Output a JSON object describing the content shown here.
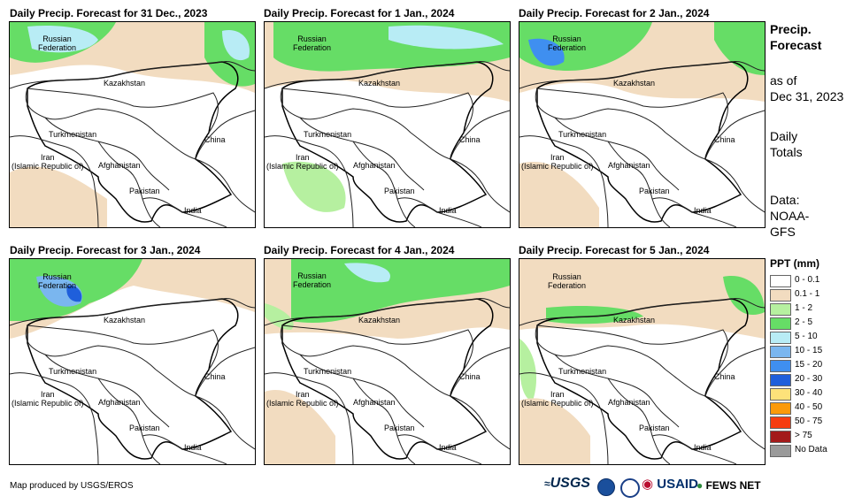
{
  "panels": [
    {
      "title": "Daily Precip. Forecast for 31 Dec., 2023"
    },
    {
      "title": "Daily Precip. Forecast for 1 Jan., 2024"
    },
    {
      "title": "Daily Precip. Forecast for 2 Jan., 2024"
    },
    {
      "title": "Daily Precip. Forecast for 3 Jan., 2024"
    },
    {
      "title": "Daily Precip. Forecast for 4 Jan., 2024"
    },
    {
      "title": "Daily Precip. Forecast for 5 Jan., 2024"
    }
  ],
  "labels": {
    "russia_1": "Russian",
    "russia_2": "Federation",
    "kazakhstan": "Kazakhstan",
    "turkmenistan": "Turkmenistan",
    "iran_1": "Iran",
    "iran_2": "(Islamic Republic of)",
    "afghanistan": "Afghanistan",
    "pakistan": "Pakistan",
    "china": "China",
    "india": "India"
  },
  "side": {
    "title_1": "Precip.",
    "title_2": "Forecast",
    "asof_1": "as of",
    "asof_2": "Dec 31, 2023",
    "totals_1": "Daily",
    "totals_2": "Totals",
    "data_1": "Data:",
    "data_2": "NOAA-",
    "data_3": "GFS"
  },
  "legend": {
    "title": "PPT (mm)",
    "items": [
      {
        "label": "0 - 0.1",
        "color": "#ffffff"
      },
      {
        "label": "0.1 - 1",
        "color": "#f2dcc0"
      },
      {
        "label": "1 - 2",
        "color": "#b6f0a0"
      },
      {
        "label": "2 - 5",
        "color": "#66dd66"
      },
      {
        "label": "5 - 10",
        "color": "#b8ecf5"
      },
      {
        "label": "10 - 15",
        "color": "#7ab6ef"
      },
      {
        "label": "15 - 20",
        "color": "#3f8ff0"
      },
      {
        "label": "20 - 30",
        "color": "#1f5fdb"
      },
      {
        "label": "30 - 40",
        "color": "#fde27a"
      },
      {
        "label": "40 - 50",
        "color": "#fb9a0a"
      },
      {
        "label": "50 - 75",
        "color": "#f63c10"
      },
      {
        "label": "> 75",
        "color": "#a31a1a"
      },
      {
        "label": "No Data",
        "color": "#9a9a9a"
      }
    ]
  },
  "footer": {
    "credit": "Map produced by USGS/EROS",
    "usgs": "USGS",
    "usaid": "USAID",
    "fews": "FEWS NET"
  }
}
